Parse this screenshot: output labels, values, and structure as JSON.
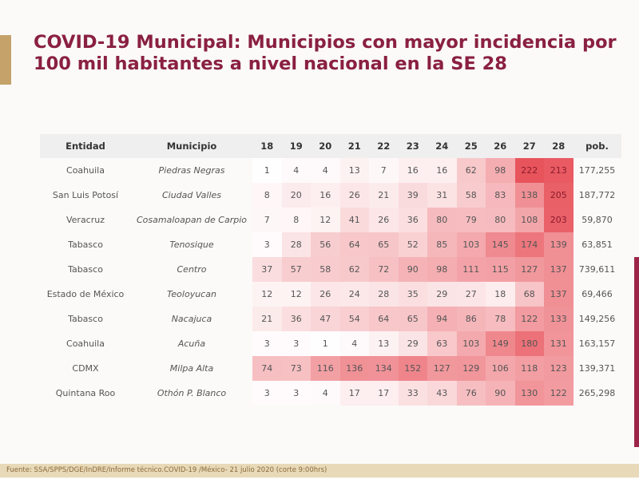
{
  "title": "COVID-19 Municipal: Municipios con mayor incidencia por 100 mil habitantes a nivel nacional en la SE 28",
  "footer": "Fuente: SSA/SPPS/DGE/InDRE/Informe técnico.COVID-19 /México- 21 julio 2020 (corte 9:00hrs)",
  "colors": {
    "title": "#8a2040",
    "low": "#ffffff",
    "high": "#e8545c",
    "gold": "#c4a26a"
  },
  "chart_data": {
    "type": "heatmap",
    "headers": {
      "entidad": "Entidad",
      "municipio": "Municipio",
      "pob": "pob."
    },
    "weeks": [
      "18",
      "19",
      "20",
      "21",
      "22",
      "23",
      "24",
      "25",
      "26",
      "27",
      "28"
    ],
    "rows": [
      {
        "entidad": "Coahuila",
        "municipio": "Piedras Negras",
        "values": [
          1,
          4,
          4,
          13,
          7,
          16,
          16,
          62,
          98,
          222,
          213
        ],
        "pob": "177,255"
      },
      {
        "entidad": "San Luis Potosí",
        "municipio": "Ciudad Valles",
        "values": [
          8,
          20,
          16,
          26,
          21,
          39,
          31,
          58,
          83,
          138,
          205
        ],
        "pob": "187,772"
      },
      {
        "entidad": "Veracruz",
        "municipio": "Cosamaloapan de Carpio",
        "values": [
          7,
          8,
          12,
          41,
          26,
          36,
          80,
          79,
          80,
          108,
          203
        ],
        "pob": "59,870"
      },
      {
        "entidad": "Tabasco",
        "municipio": "Tenosique",
        "values": [
          3,
          28,
          56,
          64,
          65,
          52,
          85,
          103,
          145,
          174,
          139
        ],
        "pob": "63,851"
      },
      {
        "entidad": "Tabasco",
        "municipio": "Centro",
        "values": [
          37,
          57,
          58,
          62,
          72,
          90,
          98,
          111,
          115,
          127,
          137
        ],
        "pob": "739,611"
      },
      {
        "entidad": "Estado de México",
        "municipio": "Teoloyucan",
        "values": [
          12,
          12,
          26,
          24,
          28,
          35,
          29,
          27,
          18,
          68,
          137
        ],
        "pob": "69,466"
      },
      {
        "entidad": "Tabasco",
        "municipio": "Nacajuca",
        "values": [
          21,
          36,
          47,
          54,
          64,
          65,
          94,
          86,
          78,
          122,
          133
        ],
        "pob": "149,256"
      },
      {
        "entidad": "Coahuila",
        "municipio": "Acuña",
        "values": [
          3,
          3,
          1,
          4,
          13,
          29,
          63,
          103,
          149,
          180,
          131
        ],
        "pob": "163,157"
      },
      {
        "entidad": "CDMX",
        "municipio": "Milpa Alta",
        "values": [
          74,
          73,
          116,
          136,
          134,
          152,
          127,
          129,
          106,
          118,
          123
        ],
        "pob": "139,371"
      },
      {
        "entidad": "Quintana Roo",
        "municipio": "Othón P. Blanco",
        "values": [
          3,
          3,
          4,
          17,
          17,
          33,
          43,
          76,
          90,
          130,
          122
        ],
        "pob": "265,298"
      }
    ]
  }
}
